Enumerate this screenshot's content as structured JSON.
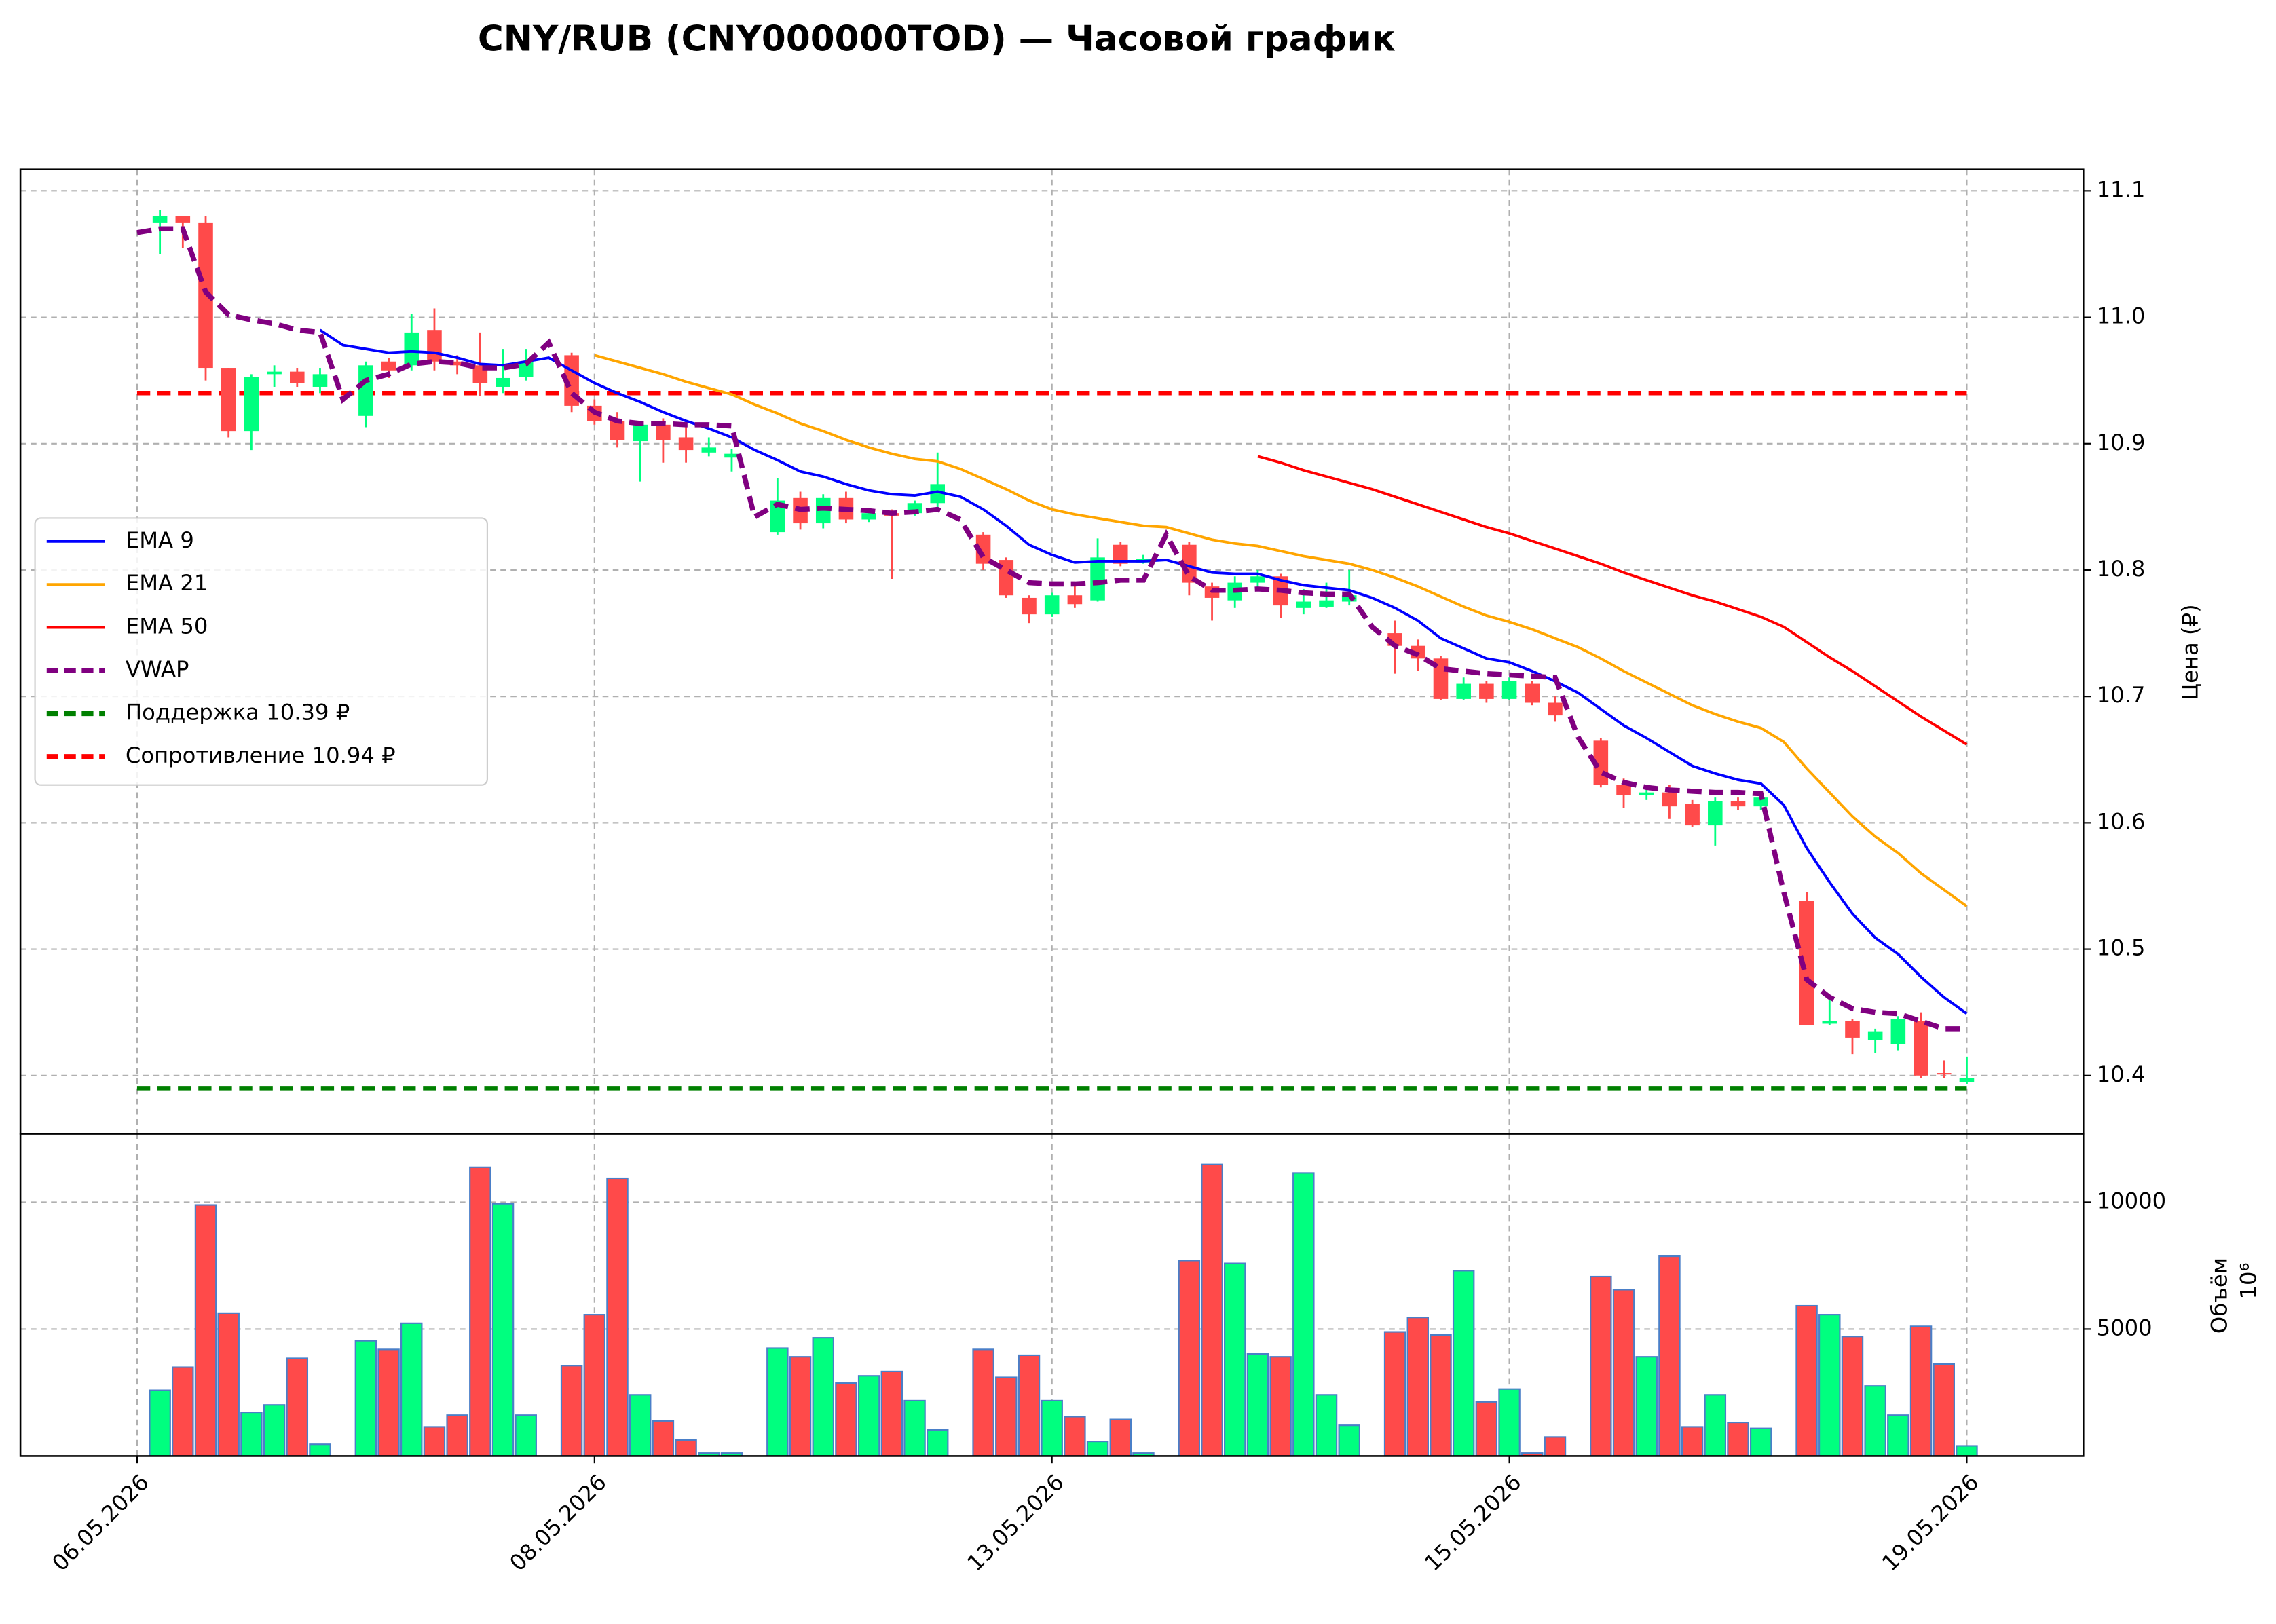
{
  "chart_data": {
    "type": "candlestick",
    "title": "CNY/RUB (CNY000000TOD) — Часовой график",
    "y_label": "Цена (₽)",
    "volume_label": "Объём",
    "volume_offset_label": "10⁶",
    "up_color": "#00ff7f",
    "down_color": "#ff4a4a",
    "volume_edge_color": "#4a7fc8",
    "grid": true,
    "legend": "center left",
    "x": [
      0,
      1,
      2,
      3,
      4,
      5,
      6,
      7,
      8,
      9,
      10,
      11,
      12,
      13,
      14,
      15,
      16,
      17,
      18,
      19,
      20,
      21,
      22,
      23,
      24,
      25,
      26,
      27,
      28,
      29,
      30,
      31,
      32,
      33,
      34,
      35,
      36,
      37,
      38,
      39,
      40,
      41,
      42,
      43,
      44,
      45,
      46,
      47,
      48,
      49,
      50,
      51,
      52,
      53,
      54,
      55,
      56,
      57,
      58,
      59,
      60,
      61,
      62,
      63,
      64,
      65,
      66,
      67,
      68,
      69,
      70,
      71,
      72,
      73,
      74,
      75,
      76,
      77,
      78,
      79,
      80
    ],
    "xlim": [
      -5.1,
      85.1
    ],
    "xticks": [
      {
        "value": 0,
        "label": "06.05.2026"
      },
      {
        "value": 20,
        "label": "08.05.2026"
      },
      {
        "value": 40,
        "label": "13.05.2026"
      },
      {
        "value": 60,
        "label": "15.05.2026"
      },
      {
        "value": 80,
        "label": "19.05.2026"
      }
    ],
    "ylim": [
      10.354,
      11.117
    ],
    "yticks": [
      10.4,
      10.5,
      10.6,
      10.7,
      10.8,
      10.9,
      {
        "value": 11,
        "label": "11.0"
      },
      11.1
    ],
    "volume_ylim": [
      0,
      12700
    ],
    "volume_yticks": [
      5000,
      10000
    ],
    "open": [
      null,
      11.075,
      11.08,
      11.075,
      10.96,
      10.91,
      10.955,
      10.957,
      10.945,
      null,
      10.922,
      10.965,
      10.962,
      10.99,
      10.965,
      10.962,
      10.945,
      10.953,
      null,
      10.97,
      10.93,
      10.918,
      10.902,
      10.915,
      10.905,
      10.893,
      10.889,
      null,
      10.83,
      10.857,
      10.837,
      10.857,
      10.84,
      10.845,
      10.845,
      10.853,
      null,
      10.828,
      10.808,
      10.778,
      10.765,
      10.78,
      10.776,
      10.82,
      10.806,
      null,
      10.82,
      10.787,
      10.776,
      10.79,
      10.795,
      10.77,
      10.771,
      10.775,
      null,
      10.75,
      10.74,
      10.73,
      10.698,
      10.71,
      10.698,
      10.71,
      10.695,
      null,
      10.665,
      10.63,
      10.622,
      10.624,
      10.615,
      10.598,
      10.617,
      10.613,
      null,
      10.538,
      10.441,
      10.443,
      10.428,
      10.425,
      10.443,
      10.402,
      10.395
    ],
    "high": [
      null,
      11.085,
      11.08,
      11.08,
      10.96,
      10.955,
      10.962,
      10.96,
      10.96,
      null,
      10.965,
      10.968,
      11.003,
      11.007,
      10.97,
      10.988,
      10.975,
      10.975,
      null,
      10.972,
      10.935,
      10.925,
      10.918,
      10.92,
      10.915,
      10.905,
      10.896,
      null,
      10.873,
      10.862,
      10.86,
      10.862,
      10.848,
      10.848,
      10.855,
      10.893,
      null,
      10.83,
      10.81,
      10.78,
      10.782,
      10.79,
      10.825,
      10.822,
      10.812,
      null,
      10.822,
      10.79,
      10.795,
      10.8,
      10.797,
      10.785,
      10.79,
      10.8,
      null,
      10.76,
      10.745,
      10.732,
      10.715,
      10.712,
      10.715,
      10.712,
      10.7,
      null,
      10.667,
      10.635,
      10.63,
      10.63,
      10.618,
      10.62,
      10.62,
      10.622,
      null,
      10.545,
      10.46,
      10.445,
      10.437,
      10.447,
      10.45,
      10.412,
      10.415
    ],
    "low": [
      null,
      11.05,
      11.055,
      10.95,
      10.905,
      10.895,
      10.945,
      10.945,
      10.94,
      null,
      10.913,
      10.952,
      10.958,
      10.958,
      10.955,
      10.938,
      10.94,
      10.95,
      null,
      10.925,
      10.915,
      10.897,
      10.87,
      10.885,
      10.885,
      10.89,
      10.878,
      null,
      10.828,
      10.832,
      10.833,
      10.837,
      10.838,
      10.793,
      10.843,
      10.85,
      null,
      10.8,
      10.778,
      10.758,
      10.763,
      10.77,
      10.775,
      10.803,
      10.805,
      null,
      10.78,
      10.76,
      10.77,
      10.785,
      10.762,
      10.765,
      10.77,
      10.772,
      null,
      10.718,
      10.72,
      10.697,
      10.697,
      10.695,
      10.697,
      10.693,
      10.68,
      null,
      10.628,
      10.612,
      10.618,
      10.603,
      10.597,
      10.582,
      10.61,
      10.61,
      null,
      10.44,
      10.44,
      10.417,
      10.418,
      10.42,
      10.398,
      10.398,
      10.393
    ],
    "close": [
      null,
      11.08,
      11.075,
      10.96,
      10.91,
      10.953,
      10.957,
      10.948,
      10.955,
      null,
      10.962,
      10.958,
      10.988,
      10.965,
      10.962,
      10.948,
      10.952,
      10.965,
      null,
      10.93,
      10.918,
      10.903,
      10.915,
      10.903,
      10.895,
      10.897,
      10.892,
      null,
      10.855,
      10.837,
      10.857,
      10.84,
      10.845,
      10.843,
      10.853,
      10.868,
      null,
      10.805,
      10.78,
      10.765,
      10.78,
      10.773,
      10.81,
      10.805,
      10.809,
      null,
      10.79,
      10.778,
      10.79,
      10.795,
      10.772,
      10.775,
      10.776,
      10.78,
      null,
      10.74,
      10.73,
      10.698,
      10.71,
      10.698,
      10.712,
      10.695,
      10.685,
      null,
      10.63,
      10.622,
      10.624,
      10.613,
      10.598,
      10.617,
      10.613,
      10.62,
      null,
      10.44,
      10.443,
      10.43,
      10.435,
      10.445,
      10.4,
      10.401,
      10.398
    ],
    "volume": [
      null,
      2590,
      3500,
      9890,
      5630,
      1720,
      2010,
      3850,
      460,
      null,
      4540,
      4200,
      5230,
      1150,
      1610,
      11380,
      9940,
      1610,
      null,
      3560,
      5570,
      10920,
      2410,
      1380,
      630,
      115,
      115,
      null,
      4250,
      3910,
      4660,
      2870,
      3160,
      3330,
      2180,
      1030,
      null,
      4200,
      3100,
      3970,
      2180,
      1550,
      570,
      1440,
      115,
      null,
      7700,
      11490,
      7590,
      4020,
      3910,
      11150,
      2410,
      1210,
      null,
      4890,
      5460,
      4770,
      7300,
      2130,
      2640,
      115,
      750,
      null,
      7070,
      6550,
      3910,
      7870,
      1150,
      2410,
      1320,
      1090,
      null,
      5920,
      5570,
      4710,
      2760,
      1610,
      5110,
      3620,
      400
    ],
    "series": [
      {
        "name": "EMA 9",
        "color": "#0000ff",
        "dashed": false,
        "values": [
          null,
          null,
          null,
          null,
          null,
          null,
          null,
          null,
          10.99,
          10.978,
          10.975,
          10.972,
          10.973,
          10.972,
          10.968,
          10.963,
          10.962,
          10.965,
          10.968,
          10.958,
          10.948,
          10.94,
          10.933,
          10.925,
          10.918,
          10.912,
          10.905,
          10.895,
          10.887,
          10.878,
          10.874,
          10.868,
          10.863,
          10.86,
          10.859,
          10.862,
          10.858,
          10.848,
          10.835,
          10.82,
          10.812,
          10.806,
          10.807,
          10.807,
          10.807,
          10.808,
          10.803,
          10.798,
          10.797,
          10.797,
          10.792,
          10.788,
          10.786,
          10.784,
          10.778,
          10.77,
          10.76,
          10.746,
          10.738,
          10.73,
          10.727,
          10.72,
          10.712,
          10.703,
          10.69,
          10.677,
          10.667,
          10.656,
          10.645,
          10.639,
          10.634,
          10.631,
          10.614,
          10.58,
          10.553,
          10.528,
          10.509,
          10.496,
          10.478,
          10.462,
          10.449
        ]
      },
      {
        "name": "EMA 21",
        "color": "#ffa500",
        "dashed": false,
        "values": [
          null,
          null,
          null,
          null,
          null,
          null,
          null,
          null,
          null,
          null,
          null,
          null,
          null,
          null,
          null,
          null,
          null,
          null,
          null,
          null,
          10.97,
          10.965,
          10.96,
          10.955,
          10.949,
          10.944,
          10.939,
          10.931,
          10.924,
          10.916,
          10.91,
          10.903,
          10.897,
          10.892,
          10.888,
          10.886,
          10.88,
          10.872,
          10.864,
          10.855,
          10.848,
          10.844,
          10.841,
          10.838,
          10.835,
          10.834,
          10.829,
          10.824,
          10.821,
          10.819,
          10.815,
          10.811,
          10.808,
          10.805,
          10.8,
          10.794,
          10.787,
          10.779,
          10.771,
          10.764,
          10.759,
          10.753,
          10.746,
          10.739,
          10.73,
          10.72,
          10.711,
          10.702,
          10.693,
          10.686,
          10.68,
          10.675,
          10.664,
          10.643,
          10.624,
          10.605,
          10.589,
          10.576,
          10.56,
          10.547,
          10.534
        ]
      },
      {
        "name": "EMA 50",
        "color": "#ff0000",
        "dashed": false,
        "values": [
          null,
          null,
          null,
          null,
          null,
          null,
          null,
          null,
          null,
          null,
          null,
          null,
          null,
          null,
          null,
          null,
          null,
          null,
          null,
          null,
          null,
          null,
          null,
          null,
          null,
          null,
          null,
          null,
          null,
          null,
          null,
          null,
          null,
          null,
          null,
          null,
          null,
          null,
          null,
          null,
          null,
          null,
          null,
          null,
          null,
          null,
          null,
          null,
          null,
          10.89,
          10.885,
          10.879,
          10.874,
          10.869,
          10.864,
          10.858,
          10.852,
          10.846,
          10.84,
          10.834,
          10.829,
          10.823,
          10.817,
          10.811,
          10.805,
          10.798,
          10.792,
          10.786,
          10.78,
          10.775,
          10.769,
          10.763,
          10.755,
          10.743,
          10.731,
          10.72,
          10.708,
          10.696,
          10.684,
          10.673,
          10.662
        ]
      },
      {
        "name": "VWAP",
        "color": "#800080",
        "dashed": true,
        "values": [
          11.067,
          11.07,
          11.07,
          11.02,
          11.002,
          10.998,
          10.995,
          10.99,
          10.988,
          10.935,
          10.95,
          10.955,
          10.963,
          10.965,
          10.964,
          10.96,
          10.96,
          10.963,
          10.98,
          10.94,
          10.925,
          10.918,
          10.916,
          10.916,
          10.915,
          10.915,
          10.914,
          10.842,
          10.852,
          10.848,
          10.849,
          10.848,
          10.847,
          10.845,
          10.846,
          10.848,
          10.84,
          10.81,
          10.8,
          10.79,
          10.789,
          10.789,
          10.79,
          10.792,
          10.792,
          10.828,
          10.795,
          10.784,
          10.784,
          10.785,
          10.784,
          10.782,
          10.781,
          10.781,
          10.755,
          10.74,
          10.733,
          10.722,
          10.72,
          10.718,
          10.717,
          10.716,
          10.715,
          10.668,
          10.64,
          10.632,
          10.628,
          10.626,
          10.625,
          10.624,
          10.624,
          10.623,
          10.545,
          10.476,
          10.462,
          10.453,
          10.45,
          10.449,
          10.443,
          10.437,
          10.437
        ]
      }
    ],
    "levels": [
      {
        "name": "Поддержка 10.39 ₽",
        "color": "#008000",
        "value": 10.39
      },
      {
        "name": "Сопротивление 10.94 ₽",
        "color": "#ff0000",
        "value": 10.94
      }
    ]
  }
}
